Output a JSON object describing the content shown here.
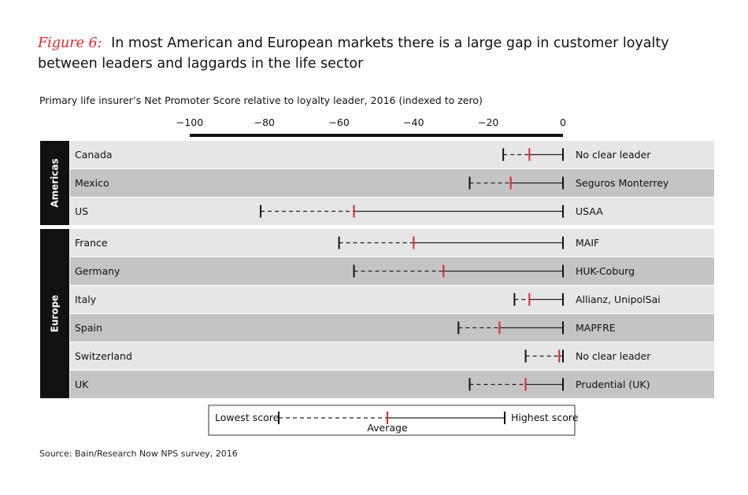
{
  "title": {
    "figure_label": "Figure 6:",
    "text": "In most American and European markets there is a large gap in customer loyalty between leaders and laggards in the life sector"
  },
  "subtitle": "Primary life insurer’s Net Promoter Score relative to loyalty leader, 2016 (indexed to zero)",
  "source": "Source: Bain/Research Now NPS survey, 2016",
  "legend": {
    "lowest": "Lowest score",
    "average": "Average",
    "highest": "Highest score"
  },
  "colors": {
    "accent": "#e0262b",
    "row_light": "#e6e6e6",
    "row_dark": "#c4c4c4",
    "group_label_bg": "#111111"
  },
  "chart_data": {
    "type": "range",
    "xlim": [
      -100,
      0
    ],
    "x_ticks": [
      "−100",
      "−80",
      "−60",
      "−40",
      "−20",
      "0"
    ],
    "groups": [
      {
        "name": "Americas",
        "rows": [
          {
            "country": "Canada",
            "lowest": -16,
            "average": -9,
            "highest": 0,
            "leader": "No clear leader"
          },
          {
            "country": "Mexico",
            "lowest": -25,
            "average": -14,
            "highest": 0,
            "leader": "Seguros Monterrey"
          },
          {
            "country": "US",
            "lowest": -81,
            "average": -56,
            "highest": 0,
            "leader": "USAA"
          }
        ]
      },
      {
        "name": "Europe",
        "rows": [
          {
            "country": "France",
            "lowest": -60,
            "average": -40,
            "highest": 0,
            "leader": "MAIF"
          },
          {
            "country": "Germany",
            "lowest": -56,
            "average": -32,
            "highest": 0,
            "leader": "HUK-Coburg"
          },
          {
            "country": "Italy",
            "lowest": -13,
            "average": -9,
            "highest": 0,
            "leader": "Allianz, UnipolSai"
          },
          {
            "country": "Spain",
            "lowest": -28,
            "average": -17,
            "highest": 0,
            "leader": "MAPFRE"
          },
          {
            "country": "Switzerland",
            "lowest": -10,
            "average": -1,
            "highest": 0,
            "leader": "No clear leader"
          },
          {
            "country": "UK",
            "lowest": -25,
            "average": -10,
            "highest": 0,
            "leader": "Prudential (UK)"
          }
        ]
      }
    ]
  }
}
